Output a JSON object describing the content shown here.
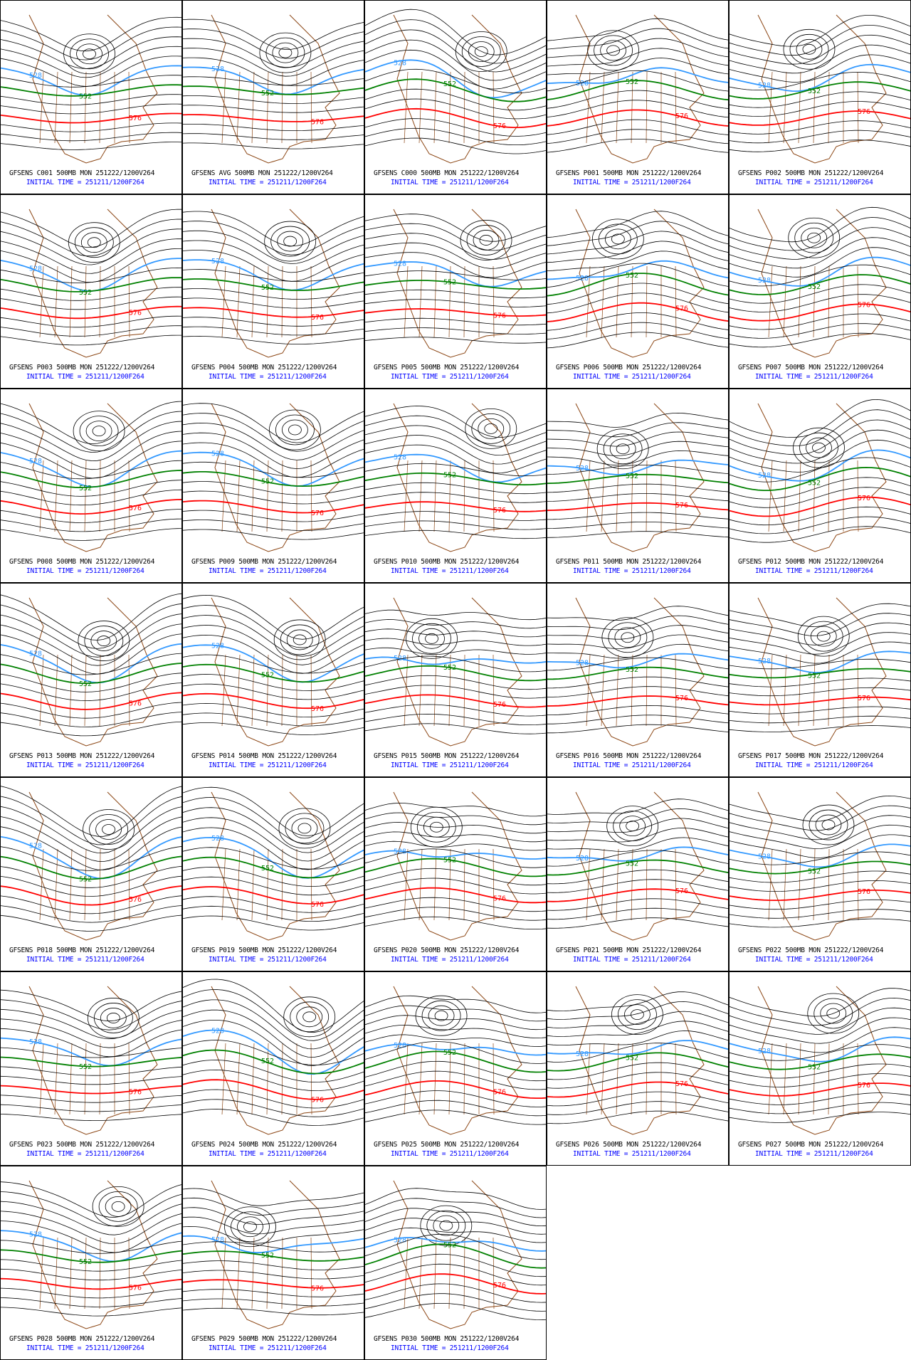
{
  "colors": {
    "contour": "#000000",
    "c528": "#3399ff",
    "c552": "#008000",
    "c576": "#ff0000",
    "map": "#8b4513",
    "caption_line2": "#0000ff"
  },
  "contour_labels": [
    "528",
    "552",
    "576"
  ],
  "caption_line1_suffix": "500MB MON 251222/1200V264",
  "caption_line2": "INITIAL TIME = 251211/1200F264",
  "panels": [
    {
      "member": "C001",
      "line1": "GFSENS C001 500MB MON 251222/1200V264",
      "line2": "INITIAL TIME = 251211/1200F264"
    },
    {
      "member": "AVG",
      "line1": "GFSENS AVG 500MB MON 251222/1200V264",
      "line2": "INITIAL TIME = 251211/1200F264"
    },
    {
      "member": "C000",
      "line1": "GFSENS C000 500MB MON 251222/1200V264",
      "line2": "INITIAL TIME = 251211/1200F264"
    },
    {
      "member": "P001",
      "line1": "GFSENS P001 500MB MON 251222/1200V264",
      "line2": "INITIAL TIME = 251211/1200F264"
    },
    {
      "member": "P002",
      "line1": "GFSENS P002 500MB MON 251222/1200V264",
      "line2": "INITIAL TIME = 251211/1200F264"
    },
    {
      "member": "P003",
      "line1": "GFSENS P003 500MB MON 251222/1200V264",
      "line2": "INITIAL TIME = 251211/1200F264"
    },
    {
      "member": "P004",
      "line1": "GFSENS P004 500MB MON 251222/1200V264",
      "line2": "INITIAL TIME = 251211/1200F264"
    },
    {
      "member": "P005",
      "line1": "GFSENS P005 500MB MON 251222/1200V264",
      "line2": "INITIAL TIME = 251211/1200F264"
    },
    {
      "member": "P006",
      "line1": "GFSENS P006 500MB MON 251222/1200V264",
      "line2": "INITIAL TIME = 251211/1200F264"
    },
    {
      "member": "P007",
      "line1": "GFSENS P007 500MB MON 251222/1200V264",
      "line2": "INITIAL TIME = 251211/1200F264"
    },
    {
      "member": "P008",
      "line1": "GFSENS P008 500MB MON 251222/1200V264",
      "line2": "INITIAL TIME = 251211/1200F264"
    },
    {
      "member": "P009",
      "line1": "GFSENS P009 500MB MON 251222/1200V264",
      "line2": "INITIAL TIME = 251211/1200F264"
    },
    {
      "member": "P010",
      "line1": "GFSENS P010 500MB MON 251222/1200V264",
      "line2": "INITIAL TIME = 251211/1200F264"
    },
    {
      "member": "P011",
      "line1": "GFSENS P011 500MB MON 251222/1200V264",
      "line2": "INITIAL TIME = 251211/1200F264"
    },
    {
      "member": "P012",
      "line1": "GFSENS P012 500MB MON 251222/1200V264",
      "line2": "INITIAL TIME = 251211/1200F264"
    },
    {
      "member": "P013",
      "line1": "GFSENS P013 500MB MON 251222/1200V264",
      "line2": "INITIAL TIME = 251211/1200F264"
    },
    {
      "member": "P014",
      "line1": "GFSENS P014 500MB MON 251222/1200V264",
      "line2": "INITIAL TIME = 251211/1200F264"
    },
    {
      "member": "P015",
      "line1": "GFSENS P015 500MB MON 251222/1200V264",
      "line2": "INITIAL TIME = 251211/1200F264"
    },
    {
      "member": "P016",
      "line1": "GFSENS P016 500MB MON 251222/1200V264",
      "line2": "INITIAL TIME = 251211/1200F264"
    },
    {
      "member": "P017",
      "line1": "GFSENS P017 500MB MON 251222/1200V264",
      "line2": "INITIAL TIME = 251211/1200F264"
    },
    {
      "member": "P018",
      "line1": "GFSENS P018 500MB MON 251222/1200V264",
      "line2": "INITIAL TIME = 251211/1200F264"
    },
    {
      "member": "P019",
      "line1": "GFSENS P019 500MB MON 251222/1200V264",
      "line2": "INITIAL TIME = 251211/1200F264"
    },
    {
      "member": "P020",
      "line1": "GFSENS P020 500MB MON 251222/1200V264",
      "line2": "INITIAL TIME = 251211/1200F264"
    },
    {
      "member": "P021",
      "line1": "GFSENS P021 500MB MON 251222/1200V264",
      "line2": "INITIAL TIME = 251211/1200F264"
    },
    {
      "member": "P022",
      "line1": "GFSENS P022 500MB MON 251222/1200V264",
      "line2": "INITIAL TIME = 251211/1200F264"
    },
    {
      "member": "P023",
      "line1": "GFSENS P023 500MB MON 251222/1200V264",
      "line2": "INITIAL TIME = 251211/1200F264"
    },
    {
      "member": "P024",
      "line1": "GFSENS P024 500MB MON 251222/1200V264",
      "line2": "INITIAL TIME = 251211/1200F264"
    },
    {
      "member": "P025",
      "line1": "GFSENS P025 500MB MON 251222/1200V264",
      "line2": "INITIAL TIME = 251211/1200F264"
    },
    {
      "member": "P026",
      "line1": "GFSENS P026 500MB MON 251222/1200V264",
      "line2": "INITIAL TIME = 251211/1200F264"
    },
    {
      "member": "P027",
      "line1": "GFSENS P027 500MB MON 251222/1200V264",
      "line2": "INITIAL TIME = 251211/1200F264"
    },
    {
      "member": "P028",
      "line1": "GFSENS P028 500MB MON 251222/1200V264",
      "line2": "INITIAL TIME = 251211/1200F264"
    },
    {
      "member": "P029",
      "line1": "GFSENS P029 500MB MON 251222/1200V264",
      "line2": "INITIAL TIME = 251211/1200F264"
    },
    {
      "member": "P030",
      "line1": "GFSENS P030 500MB MON 251222/1200V264",
      "line2": "INITIAL TIME = 251211/1200F264"
    }
  ]
}
